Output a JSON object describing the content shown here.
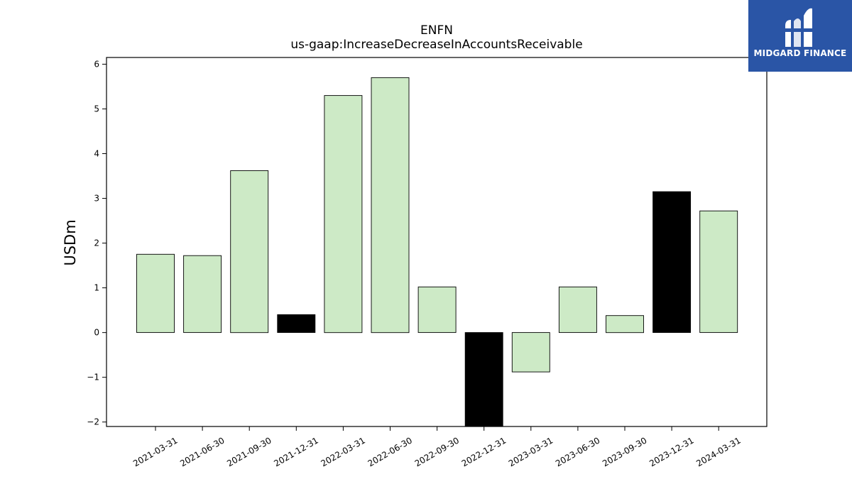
{
  "brand": {
    "name": "MIDGARD FINANCE",
    "bg_color": "#2a55a6"
  },
  "chart_data": {
    "type": "bar",
    "title": "ENFN",
    "subtitle": "us-gaap:IncreaseDecreaseInAccountsReceivable",
    "xlabel": "",
    "ylabel": "USDm",
    "ylim": [
      -2.1,
      6.15
    ],
    "yticks": [
      -2,
      -1,
      0,
      1,
      2,
      3,
      4,
      5,
      6
    ],
    "categories": [
      "2021-03-31",
      "2021-06-30",
      "2021-09-30",
      "2021-12-31",
      "2022-03-31",
      "2022-06-30",
      "2022-09-30",
      "2022-12-31",
      "2023-03-31",
      "2023-06-30",
      "2023-09-30",
      "2023-12-31",
      "2024-03-31"
    ],
    "values": [
      1.75,
      1.72,
      3.62,
      0.4,
      5.3,
      5.7,
      1.02,
      -2.15,
      -0.88,
      1.02,
      0.38,
      3.15,
      2.72
    ],
    "highlight": [
      false,
      false,
      false,
      true,
      false,
      false,
      false,
      true,
      false,
      false,
      false,
      true,
      false
    ],
    "colors": {
      "normal": "#cdeac6",
      "highlight": "#000000",
      "edge": "#000000"
    },
    "grid": false,
    "legend": "none"
  }
}
